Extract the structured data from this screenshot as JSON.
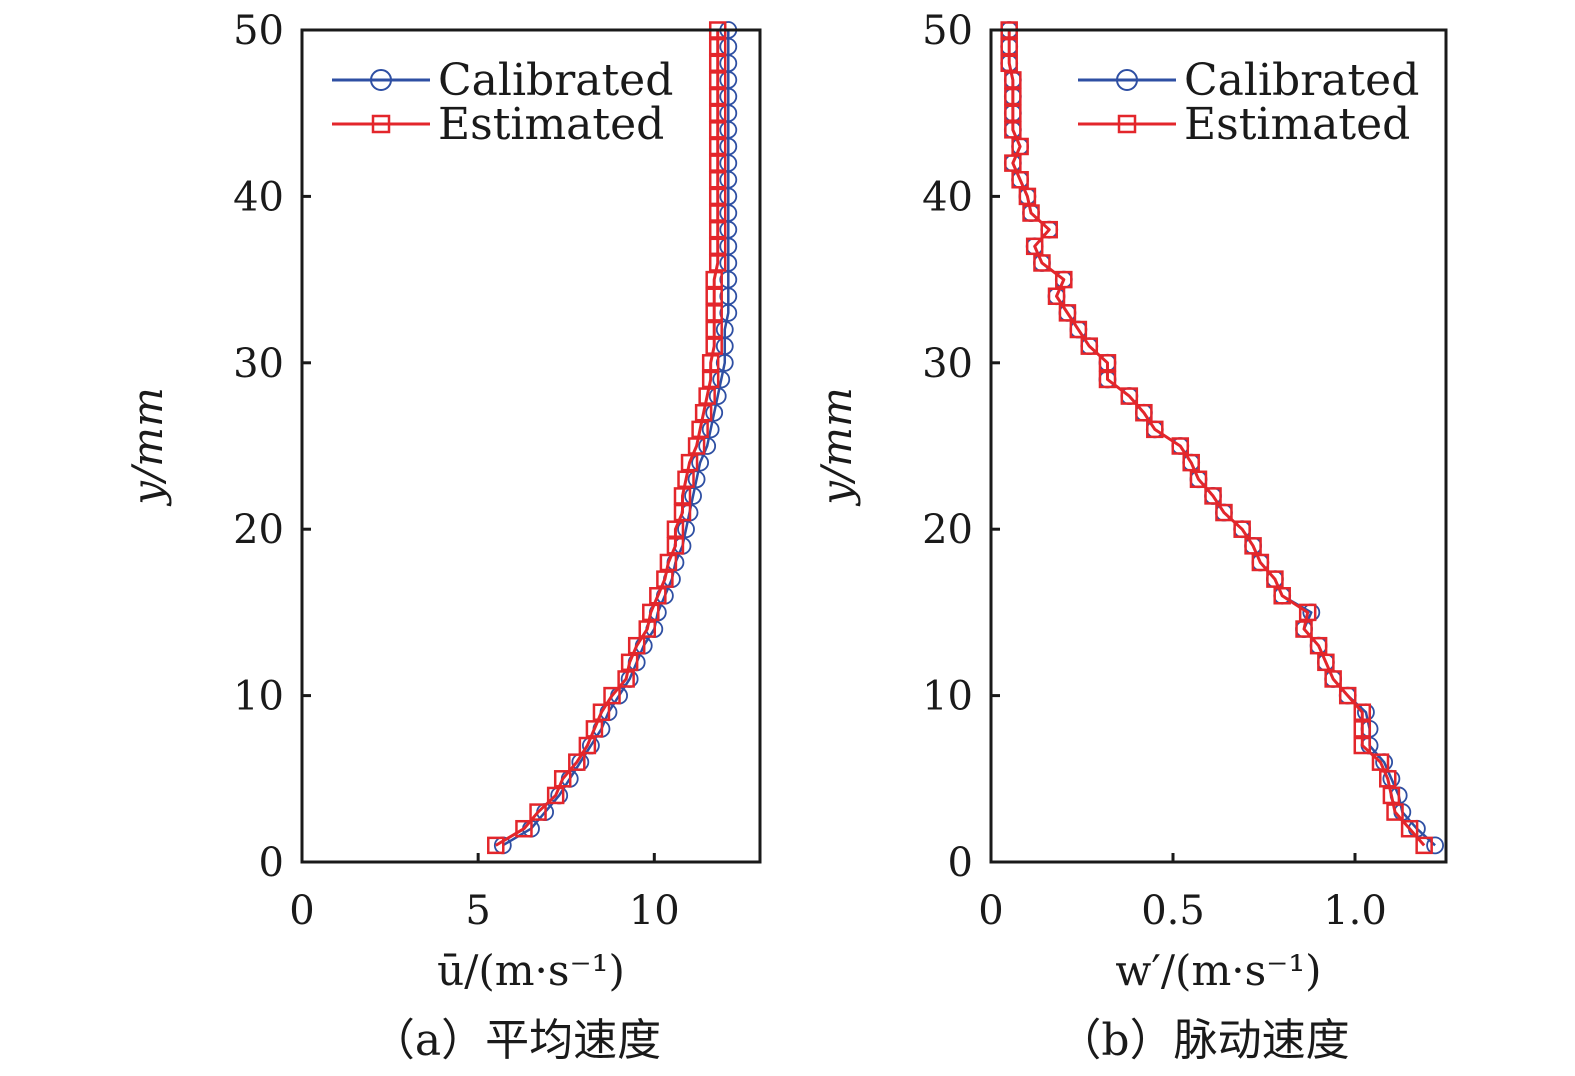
{
  "chart_data": [
    {
      "type": "line",
      "panel": "a",
      "caption": "（a）平均速度",
      "xlabel": "ū/(m·s⁻¹)",
      "ylabel": "y/mm",
      "xlim": [
        0,
        13
      ],
      "ylim": [
        0,
        50
      ],
      "xticks": [
        0,
        5,
        10
      ],
      "xtick_labels": [
        "0",
        "5",
        "10"
      ],
      "yticks": [
        0,
        10,
        20,
        30,
        40,
        50
      ],
      "ytick_labels": [
        "0",
        "10",
        "20",
        "30",
        "40",
        "50"
      ],
      "grid": false,
      "legend_position": "top-left",
      "y": [
        1,
        2,
        3,
        4,
        5,
        6,
        7,
        8,
        9,
        10,
        11,
        12,
        13,
        14,
        15,
        16,
        17,
        18,
        19,
        20,
        21,
        22,
        23,
        24,
        25,
        26,
        27,
        28,
        29,
        30,
        31,
        32,
        33,
        34,
        35,
        36,
        37,
        38,
        39,
        40,
        41,
        42,
        43,
        44,
        45,
        46,
        47,
        48,
        49,
        50
      ],
      "series": [
        {
          "name": "Calibrated",
          "color": "#2e4fa3",
          "marker": "circle",
          "x": [
            5.7,
            6.5,
            6.9,
            7.3,
            7.6,
            7.9,
            8.2,
            8.5,
            8.7,
            9.0,
            9.3,
            9.5,
            9.7,
            10.0,
            10.1,
            10.3,
            10.5,
            10.6,
            10.8,
            10.9,
            11.0,
            11.1,
            11.2,
            11.3,
            11.5,
            11.6,
            11.7,
            11.8,
            11.9,
            12.0,
            12.0,
            12.0,
            12.1,
            12.1,
            12.1,
            12.1,
            12.1,
            12.1,
            12.1,
            12.1,
            12.1,
            12.1,
            12.1,
            12.1,
            12.1,
            12.1,
            12.1,
            12.1,
            12.1,
            12.1
          ]
        },
        {
          "name": "Estimated",
          "color": "#e3262b",
          "marker": "square",
          "x": [
            5.5,
            6.3,
            6.7,
            7.2,
            7.4,
            7.8,
            8.1,
            8.3,
            8.5,
            8.8,
            9.2,
            9.3,
            9.5,
            9.8,
            9.9,
            10.1,
            10.3,
            10.4,
            10.6,
            10.6,
            10.8,
            10.8,
            10.9,
            11.0,
            11.2,
            11.3,
            11.4,
            11.5,
            11.6,
            11.6,
            11.7,
            11.7,
            11.7,
            11.7,
            11.7,
            11.8,
            11.8,
            11.8,
            11.8,
            11.8,
            11.8,
            11.8,
            11.8,
            11.8,
            11.8,
            11.8,
            11.8,
            11.8,
            11.8,
            11.8
          ]
        }
      ]
    },
    {
      "type": "line",
      "panel": "b",
      "caption": "（b）脉动速度",
      "xlabel": "w′/(m·s⁻¹)",
      "ylabel": "y/mm",
      "xlim": [
        0,
        1.25
      ],
      "ylim": [
        0,
        50
      ],
      "xticks": [
        0,
        0.5,
        1.0
      ],
      "xtick_labels": [
        "0",
        "0.5",
        "1.0"
      ],
      "yticks": [
        0,
        10,
        20,
        30,
        40,
        50
      ],
      "ytick_labels": [
        "0",
        "10",
        "20",
        "30",
        "40",
        "50"
      ],
      "grid": false,
      "legend_position": "top-right",
      "y": [
        1,
        2,
        3,
        4,
        5,
        6,
        7,
        8,
        9,
        10,
        11,
        12,
        13,
        14,
        15,
        16,
        17,
        18,
        19,
        20,
        21,
        22,
        23,
        24,
        25,
        26,
        27,
        28,
        29,
        30,
        31,
        32,
        33,
        34,
        35,
        36,
        37,
        38,
        39,
        40,
        41,
        42,
        43,
        44,
        45,
        46,
        47,
        48,
        49,
        50
      ],
      "series": [
        {
          "name": "Calibrated",
          "color": "#2e4fa3",
          "marker": "circle",
          "x": [
            1.22,
            1.17,
            1.13,
            1.12,
            1.1,
            1.08,
            1.04,
            1.04,
            1.03,
            0.98,
            0.94,
            0.92,
            0.9,
            0.86,
            0.88,
            0.8,
            0.78,
            0.74,
            0.72,
            0.69,
            0.64,
            0.61,
            0.57,
            0.55,
            0.52,
            0.45,
            0.42,
            0.38,
            0.32,
            0.32,
            0.27,
            0.24,
            0.21,
            0.18,
            0.2,
            0.14,
            0.12,
            0.16,
            0.11,
            0.1,
            0.08,
            0.06,
            0.08,
            0.06,
            0.06,
            0.06,
            0.06,
            0.05,
            0.05,
            0.05
          ]
        },
        {
          "name": "Estimated",
          "color": "#e3262b",
          "marker": "square",
          "x": [
            1.19,
            1.15,
            1.11,
            1.1,
            1.09,
            1.07,
            1.02,
            1.02,
            1.02,
            0.98,
            0.94,
            0.92,
            0.9,
            0.86,
            0.87,
            0.8,
            0.78,
            0.74,
            0.72,
            0.69,
            0.64,
            0.61,
            0.57,
            0.55,
            0.52,
            0.45,
            0.42,
            0.38,
            0.32,
            0.32,
            0.27,
            0.24,
            0.21,
            0.18,
            0.2,
            0.14,
            0.12,
            0.16,
            0.11,
            0.1,
            0.08,
            0.06,
            0.08,
            0.06,
            0.06,
            0.06,
            0.06,
            0.05,
            0.05,
            0.05
          ]
        }
      ]
    }
  ]
}
